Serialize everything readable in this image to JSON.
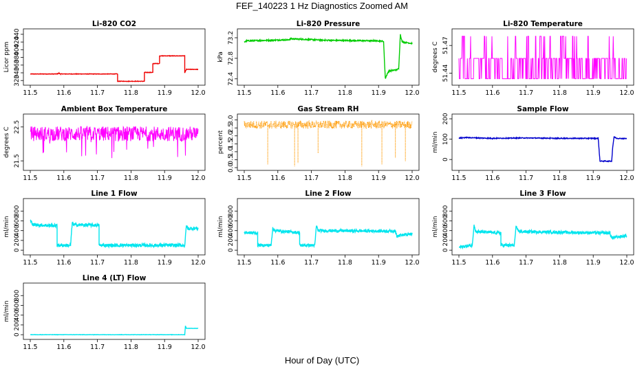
{
  "figure": {
    "title": "FEF_140223  1 Hz Diagnostics Zoomed AM",
    "xlabel": "Hour of Day (UTC)"
  },
  "chart_data": [
    {
      "type": "line",
      "title": "Li-820 CO2",
      "ylabel": "Licor ppm",
      "color": "#ee0000",
      "xlim": [
        11.5,
        12.0
      ],
      "ylim": [
        315,
        447
      ],
      "xticks": [
        "11.5",
        "11.6",
        "11.7",
        "11.8",
        "11.9",
        "12.0"
      ],
      "yticks": [
        "320",
        "340",
        "360",
        "380",
        "400",
        "420",
        "440"
      ],
      "series": [
        {
          "x": [
            11.5,
            11.58,
            11.585,
            11.59,
            11.76,
            11.76,
            11.84,
            11.84,
            11.865,
            11.865,
            11.885,
            11.885,
            11.96,
            11.96,
            11.965,
            12.0
          ],
          "y": [
            337,
            337,
            339,
            337,
            337,
            318,
            318,
            341,
            341,
            364,
            364,
            384,
            384,
            340,
            349,
            349
          ],
          "noise": 0.6
        }
      ]
    },
    {
      "type": "line",
      "title": "Li-820 Pressure",
      "ylabel": "kPa",
      "color": "#00cc00",
      "xlim": [
        11.5,
        12.0
      ],
      "ylim": [
        72.33,
        73.32
      ],
      "xticks": [
        "11.5",
        "11.6",
        "11.7",
        "11.8",
        "11.9",
        "12.0"
      ],
      "yticks": [
        "72.4",
        "72.8",
        "73.2"
      ],
      "series": [
        {
          "x": [
            11.5,
            11.505,
            11.63,
            11.64,
            11.75,
            11.9,
            11.915,
            11.92,
            11.93,
            11.955,
            11.96,
            11.965,
            11.97,
            12.0
          ],
          "y": [
            73.11,
            73.14,
            73.16,
            73.18,
            73.15,
            73.14,
            73.13,
            72.41,
            72.55,
            72.58,
            72.6,
            73.27,
            73.12,
            73.09
          ],
          "noise": 0.012
        }
      ]
    },
    {
      "type": "line",
      "title": "Li-820 Temperature",
      "ylabel": "degrees C",
      "color": "#ff00ff",
      "xlim": [
        11.5,
        12.0
      ],
      "ylim": [
        51.43,
        51.485
      ],
      "xticks": [
        "11.5",
        "11.6",
        "11.7",
        "11.8",
        "11.9",
        "12.0"
      ],
      "yticks": [
        "51.44",
        "51.47"
      ],
      "series": [
        {
          "levels": [
            51.434,
            51.456,
            51.48
          ],
          "weights": [
            0.45,
            0.45,
            0.1
          ]
        }
      ]
    },
    {
      "type": "line",
      "title": "Ambient Box Temperature",
      "ylabel": "degrees C",
      "color": "#ff00ff",
      "xlim": [
        11.5,
        12.0
      ],
      "ylim": [
        21.3,
        22.8
      ],
      "xticks": [
        "11.5",
        "11.6",
        "11.7",
        "11.8",
        "11.9",
        "12.0"
      ],
      "yticks": [
        "21.5",
        "22.5"
      ],
      "series": [
        {
          "center": 22.3,
          "spread": 0.22,
          "spike_down": 0.75
        }
      ]
    },
    {
      "type": "scatter",
      "title": "Gas Stream RH",
      "ylabel": "percent",
      "color": "#ff9900",
      "xlim": [
        11.5,
        12.0
      ],
      "ylim": [
        0,
        3.2
      ],
      "xticks": [
        "11.5",
        "11.6",
        "11.7",
        "11.8",
        "11.9",
        "12.0"
      ],
      "yticks": [
        "0.0",
        "0.5",
        "1.0",
        "1.5",
        "2.0",
        "2.5",
        "3.0"
      ],
      "series": [
        {
          "center": 2.7,
          "spread": 0.25,
          "drops_x": [
            11.57,
            11.65,
            11.66,
            11.72,
            11.85,
            11.91,
            11.95,
            11.98
          ],
          "drops_y": [
            0.2,
            0.1,
            0.3,
            0.9,
            0.1,
            0.2,
            0.6,
            0.4
          ]
        }
      ]
    },
    {
      "type": "line",
      "title": "Sample Flow",
      "ylabel": "ml/min",
      "color": "#0000cc",
      "xlim": [
        11.5,
        12.0
      ],
      "ylim": [
        -40,
        210
      ],
      "xticks": [
        "11.5",
        "11.6",
        "11.7",
        "11.8",
        "11.9",
        "12.0"
      ],
      "yticks": [
        "0",
        "100",
        "200"
      ],
      "series": [
        {
          "x": [
            11.5,
            11.52,
            11.6,
            11.7,
            11.8,
            11.915,
            11.92,
            11.955,
            11.958,
            11.962,
            11.97,
            12.0
          ],
          "y": [
            105,
            108,
            104,
            106,
            104,
            104,
            -8,
            -8,
            60,
            112,
            104,
            103
          ],
          "noise": 2
        }
      ]
    },
    {
      "type": "line",
      "title": "Line 1 Flow",
      "ylabel": "ml/min",
      "color": "#00e5ee",
      "xlim": [
        11.5,
        12.0
      ],
      "ylim": [
        -40,
        1000
      ],
      "xticks": [
        "11.5",
        "11.6",
        "11.7",
        "11.8",
        "11.9",
        "12.0"
      ],
      "yticks": [
        "0",
        "200",
        "400",
        "600",
        "800"
      ],
      "series": [
        {
          "x": [
            11.5,
            11.51,
            11.58,
            11.58,
            11.62,
            11.625,
            11.63,
            11.705,
            11.705,
            11.96,
            11.965,
            11.97,
            12.0
          ],
          "y": [
            600,
            520,
            500,
            100,
            100,
            560,
            520,
            510,
            100,
            100,
            500,
            440,
            450
          ],
          "noise": 35
        }
      ]
    },
    {
      "type": "line",
      "title": "Line 2 Flow",
      "ylabel": "ml/min",
      "color": "#00e5ee",
      "xlim": [
        11.5,
        12.0
      ],
      "ylim": [
        -40,
        1000
      ],
      "xticks": [
        "11.5",
        "11.6",
        "11.7",
        "11.8",
        "11.9",
        "12.0"
      ],
      "yticks": [
        "0",
        "200",
        "400",
        "600",
        "800"
      ],
      "series": [
        {
          "x": [
            11.5,
            11.54,
            11.54,
            11.58,
            11.585,
            11.59,
            11.665,
            11.665,
            11.71,
            11.715,
            11.72,
            11.95,
            11.955,
            12.0
          ],
          "y": [
            360,
            350,
            100,
            100,
            470,
            400,
            360,
            100,
            100,
            500,
            400,
            390,
            300,
            330
          ],
          "noise": 30
        }
      ]
    },
    {
      "type": "line",
      "title": "Line 3 Flow",
      "ylabel": "ml/min",
      "color": "#00e5ee",
      "xlim": [
        11.5,
        12.0
      ],
      "ylim": [
        -40,
        1000
      ],
      "xticks": [
        "11.5",
        "11.6",
        "11.7",
        "11.8",
        "11.9",
        "12.0"
      ],
      "yticks": [
        "0",
        "200",
        "400",
        "600",
        "800"
      ],
      "series": [
        {
          "x": [
            11.5,
            11.54,
            11.545,
            11.55,
            11.625,
            11.625,
            11.665,
            11.67,
            11.68,
            11.95,
            11.955,
            12.0
          ],
          "y": [
            60,
            100,
            530,
            380,
            350,
            100,
            100,
            470,
            380,
            350,
            250,
            300
          ],
          "noise": 30
        }
      ]
    },
    {
      "type": "line",
      "title": "Line 4 (LT) Flow",
      "ylabel": "ml/min",
      "color": "#00e5ee",
      "xlim": [
        11.5,
        12.0
      ],
      "ylim": [
        -40,
        1000
      ],
      "xticks": [
        "11.5",
        "11.6",
        "11.7",
        "11.8",
        "11.9",
        "12.0"
      ],
      "yticks": [
        "0",
        "200",
        "400",
        "600",
        "800"
      ],
      "series": [
        {
          "x": [
            11.5,
            11.96,
            11.962,
            11.965,
            12.0
          ],
          "y": [
            0,
            0,
            180,
            130,
            130
          ],
          "noise": 3
        }
      ]
    }
  ]
}
